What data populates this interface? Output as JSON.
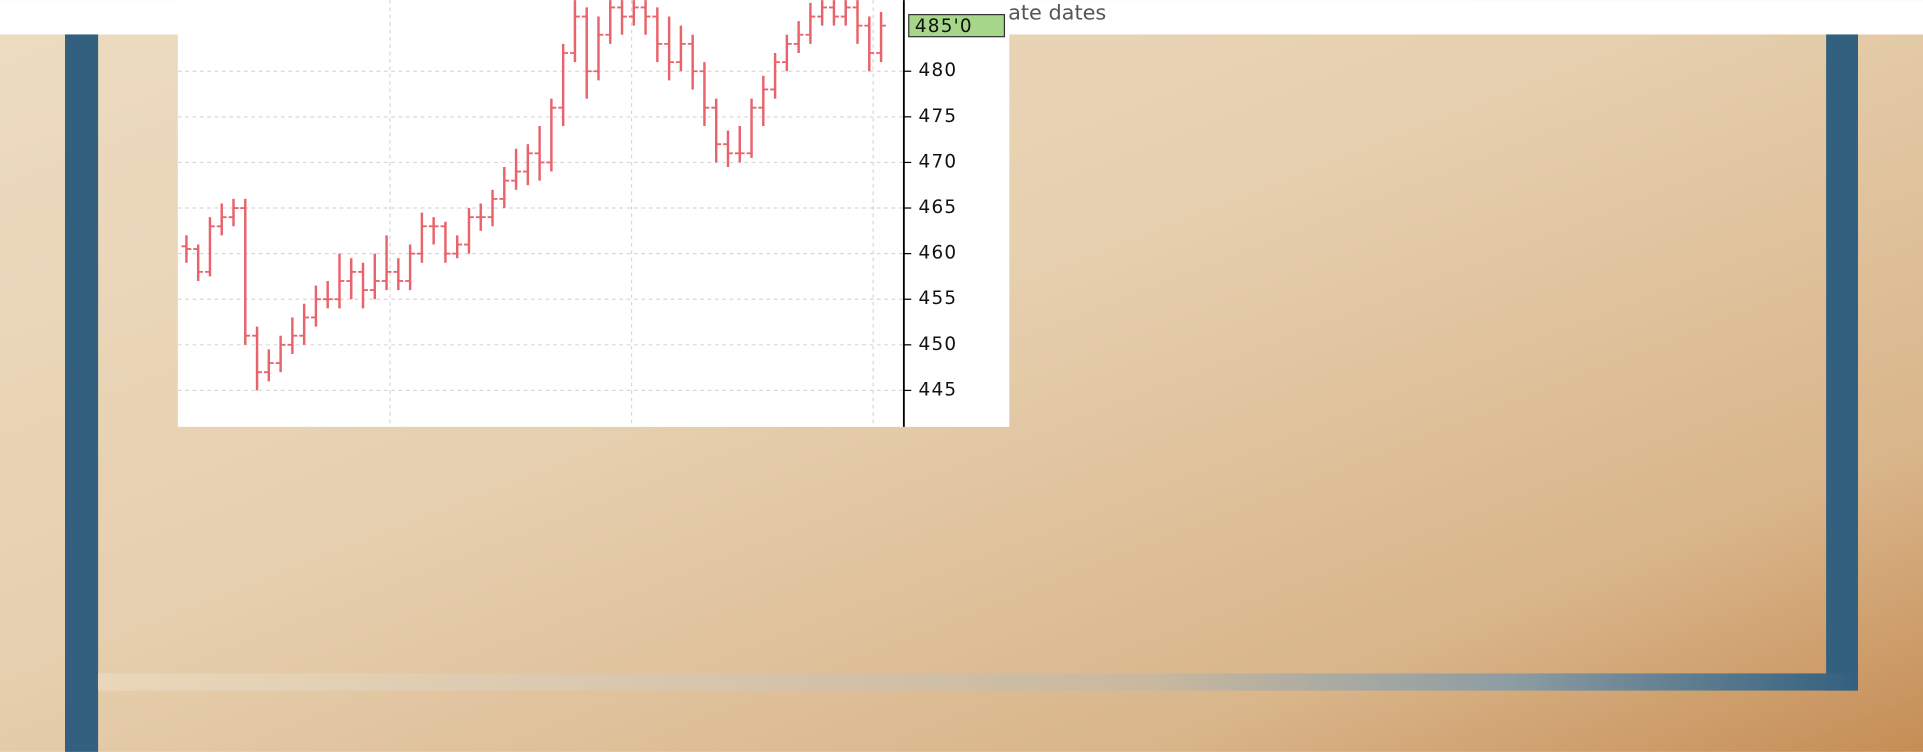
{
  "chart_data": {
    "type": "ohlc",
    "annotation": "ate dates",
    "color": "#e8636b",
    "last_price": {
      "value": 485,
      "label": "485'0"
    },
    "open": [
      460.8,
      460.5,
      458,
      463,
      464,
      465,
      451,
      447,
      448,
      450,
      451,
      453,
      455,
      455,
      457,
      458,
      456,
      457,
      458,
      457,
      460,
      463,
      463,
      460,
      461,
      464,
      464,
      466,
      468,
      469,
      471,
      470,
      476,
      482,
      486,
      480,
      484,
      487,
      486,
      487,
      486,
      483,
      481,
      483,
      480,
      476,
      472,
      471,
      471,
      476,
      478,
      481,
      483,
      484,
      486,
      487,
      486,
      487,
      485,
      482
    ],
    "high": [
      462,
      461,
      464,
      465.5,
      466,
      466,
      452,
      449.5,
      451,
      453,
      454.5,
      456.5,
      457,
      460,
      459.5,
      459,
      460,
      462,
      459.5,
      461,
      464.5,
      464,
      463.5,
      462,
      465,
      465.5,
      467,
      469.5,
      471.5,
      472,
      474,
      477,
      483,
      489,
      487,
      486,
      489,
      489,
      489,
      489,
      487,
      486,
      485,
      484,
      481,
      477,
      473.5,
      474,
      477,
      479.5,
      482,
      484,
      485.5,
      487.5,
      489,
      489,
      489,
      488.5,
      486,
      486.5
    ],
    "low": [
      459,
      457,
      457.5,
      462,
      463,
      450,
      445,
      446,
      447,
      449,
      450,
      452,
      454,
      454,
      455,
      454,
      455,
      456,
      456,
      456,
      459,
      461,
      459,
      459.5,
      460,
      462.5,
      463,
      465,
      467,
      467.5,
      468,
      469,
      474,
      481,
      477,
      479,
      483,
      484,
      485,
      484,
      481,
      479,
      480,
      478,
      474,
      470,
      469.5,
      470,
      470.5,
      474,
      477,
      480,
      482,
      483,
      485,
      485,
      485,
      483,
      480,
      481
    ],
    "close": [
      460.5,
      458,
      463,
      464,
      465,
      451,
      447,
      448,
      450,
      451,
      453,
      455,
      455,
      457,
      458,
      456,
      457,
      458,
      457,
      460,
      463,
      463,
      460,
      461,
      464,
      464,
      466,
      468,
      469,
      471,
      470,
      476,
      482,
      486,
      480,
      484,
      487,
      486,
      487,
      486,
      483,
      481,
      483,
      480,
      476,
      472,
      471,
      471,
      476,
      478,
      481,
      483,
      484,
      486,
      487,
      486,
      487,
      485,
      482,
      485
    ],
    "ylim": [
      441,
      487.8
    ],
    "yticks": [
      445,
      450,
      455,
      460,
      465,
      470,
      475,
      480
    ],
    "grid": true
  }
}
